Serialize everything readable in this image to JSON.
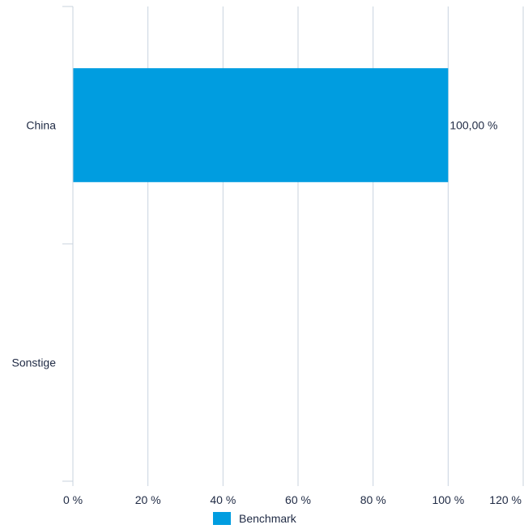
{
  "chart_data": {
    "type": "bar",
    "orientation": "horizontal",
    "categories": [
      "China",
      "Sonstige"
    ],
    "series": [
      {
        "name": "Benchmark",
        "values": [
          100,
          0
        ],
        "color": "#009de0"
      }
    ],
    "data_labels": [
      "100,00 %",
      ""
    ],
    "x_ticks": [
      0,
      20,
      40,
      60,
      80,
      100,
      120
    ],
    "x_tick_labels": [
      "0 %",
      "20 %",
      "40 %",
      "60 %",
      "80 %",
      "100 %",
      "120 %"
    ],
    "xlim": [
      0,
      120
    ],
    "grid": "vertical",
    "gridline_color": "#c8d3de",
    "legend_position": "bottom"
  }
}
